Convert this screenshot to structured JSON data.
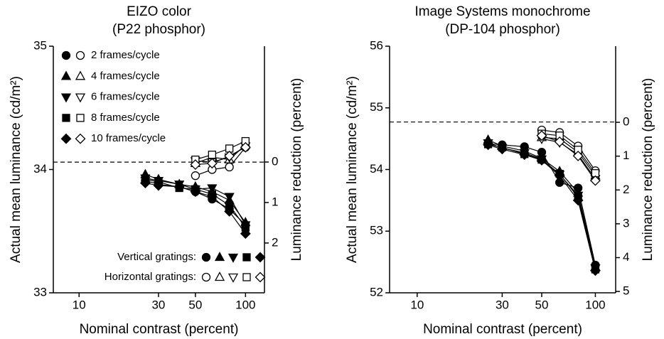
{
  "chart_data": [
    {
      "type": "line",
      "title": "EIZO color",
      "subtitle": "(P22 phosphor)",
      "xlabel": "Nominal contrast (percent)",
      "ylabel": "Actual mean luminance (cd/m²)",
      "y2label": "Luminance reduction (percent)",
      "log_x": true,
      "xlim": [
        7,
        130
      ],
      "xticks": [
        10,
        30,
        50,
        100
      ],
      "ylim": [
        33,
        35
      ],
      "yticks": [
        33,
        34,
        35
      ],
      "y2lim": [
        3.23,
        -2.86
      ],
      "y2ticks": [
        0,
        1,
        2
      ],
      "hline": 34.06,
      "legend": {
        "vertical_label": "Vertical gratings:",
        "horizontal_label": "Horizontal gratings:"
      },
      "series": [
        {
          "name": "2 frames/cycle",
          "marker": "circle",
          "color": "#000000",
          "vertical": {
            "x": [
              25,
              30,
              40,
              50,
              63,
              80,
              100
            ],
            "values": [
              33.91,
              33.88,
              33.86,
              33.82,
              33.76,
              33.68,
              33.55
            ]
          },
          "horizontal": {
            "x": [
              50,
              63,
              80,
              100
            ],
            "values": [
              33.95,
              34.0,
              34.02,
              34.18
            ]
          }
        },
        {
          "name": "4 frames/cycle",
          "marker": "triangle-up",
          "color": "#000000",
          "vertical": {
            "x": [
              25,
              30,
              40,
              50,
              63,
              80,
              100
            ],
            "values": [
              33.96,
              33.92,
              33.88,
              33.86,
              33.82,
              33.75,
              33.57
            ]
          },
          "horizontal": {
            "x": [
              50,
              63,
              80,
              100
            ],
            "values": [
              34.05,
              34.1,
              34.08,
              34.2
            ]
          }
        },
        {
          "name": "6 frames/cycle",
          "marker": "triangle-down",
          "color": "#000000",
          "vertical": {
            "x": [
              25,
              30,
              40,
              50,
              63,
              80,
              100
            ],
            "values": [
              33.93,
              33.91,
              33.88,
              33.84,
              33.85,
              33.78,
              33.55
            ]
          },
          "horizontal": {
            "x": [
              50,
              63,
              80,
              100
            ],
            "values": [
              34.07,
              34.06,
              34.1,
              34.19
            ]
          }
        },
        {
          "name": "8 frames/cycle",
          "marker": "square",
          "color": "#000000",
          "vertical": {
            "x": [
              25,
              30,
              40,
              50,
              63,
              80,
              100
            ],
            "values": [
              33.92,
              33.9,
              33.85,
              33.84,
              33.8,
              33.71,
              33.53
            ]
          },
          "horizontal": {
            "x": [
              50,
              63,
              80,
              100
            ],
            "values": [
              34.08,
              34.12,
              34.17,
              34.23
            ]
          }
        },
        {
          "name": "10 frames/cycle",
          "marker": "diamond",
          "color": "#000000",
          "vertical": {
            "x": [
              25,
              30,
              40,
              50,
              63,
              80,
              100
            ],
            "values": [
              33.89,
              33.87,
              33.86,
              33.82,
              33.78,
              33.66,
              33.48
            ]
          },
          "horizontal": {
            "x": [
              50,
              63,
              80,
              100
            ],
            "values": [
              34.04,
              34.05,
              34.11,
              34.18
            ]
          }
        }
      ]
    },
    {
      "type": "line",
      "title": "Image Systems monochrome",
      "subtitle": "(DP-104 phosphor)",
      "xlabel": "Nominal contrast (percent)",
      "ylabel": "Actual mean luminance (cd/m²)",
      "y2label": "Luminance reduction (percent)",
      "log_x": true,
      "xlim": [
        7,
        130
      ],
      "xticks": [
        10,
        30,
        50,
        100
      ],
      "ylim": [
        52,
        56
      ],
      "yticks": [
        52,
        53,
        54,
        55,
        56
      ],
      "y2lim": [
        5.04,
        -2.25
      ],
      "y2ticks": [
        0,
        1,
        2,
        3,
        4,
        5
      ],
      "hline": 54.77,
      "series": [
        {
          "marker": "circle",
          "color": "#000000",
          "vertical": {
            "x": [
              25,
              30,
              40,
              50,
              63,
              80,
              100
            ],
            "values": [
              54.42,
              54.4,
              54.37,
              54.28,
              53.79,
              53.7,
              52.45
            ]
          },
          "horizontal": {
            "x": [
              50,
              63,
              80,
              100
            ],
            "values": [
              54.64,
              54.6,
              54.38,
              53.98
            ]
          }
        },
        {
          "marker": "triangle-up",
          "color": "#000000",
          "vertical": {
            "x": [
              25,
              30,
              40,
              50,
              63,
              80,
              100
            ],
            "values": [
              54.48,
              54.38,
              54.3,
              54.18,
              53.97,
              53.62,
              52.42
            ]
          },
          "horizontal": {
            "x": [
              50,
              63,
              80,
              100
            ],
            "values": [
              54.52,
              54.5,
              54.28,
              53.9
            ]
          }
        },
        {
          "marker": "triangle-down",
          "color": "#000000",
          "vertical": {
            "x": [
              25,
              30,
              40,
              50,
              63,
              80,
              100
            ],
            "values": [
              54.43,
              54.35,
              54.27,
              54.17,
              53.92,
              53.58,
              52.4
            ]
          },
          "horizontal": {
            "x": [
              50,
              63,
              80,
              100
            ],
            "values": [
              54.5,
              54.44,
              54.24,
              53.85
            ]
          }
        },
        {
          "marker": "square",
          "color": "#000000",
          "vertical": {
            "x": [
              25,
              30,
              40,
              50,
              63,
              80,
              100
            ],
            "values": [
              54.41,
              54.36,
              54.25,
              54.16,
              53.93,
              53.55,
              52.38
            ]
          },
          "horizontal": {
            "x": [
              50,
              63,
              80,
              100
            ],
            "values": [
              54.58,
              54.55,
              54.32,
              53.94
            ]
          }
        },
        {
          "marker": "diamond",
          "color": "#000000",
          "vertical": {
            "x": [
              25,
              30,
              40,
              50,
              63,
              80,
              100
            ],
            "values": [
              54.4,
              54.33,
              54.24,
              54.15,
              53.9,
              53.5,
              52.36
            ]
          },
          "horizontal": {
            "x": [
              50,
              63,
              80,
              100
            ],
            "values": [
              54.55,
              54.45,
              54.22,
              53.82
            ]
          }
        }
      ]
    }
  ]
}
